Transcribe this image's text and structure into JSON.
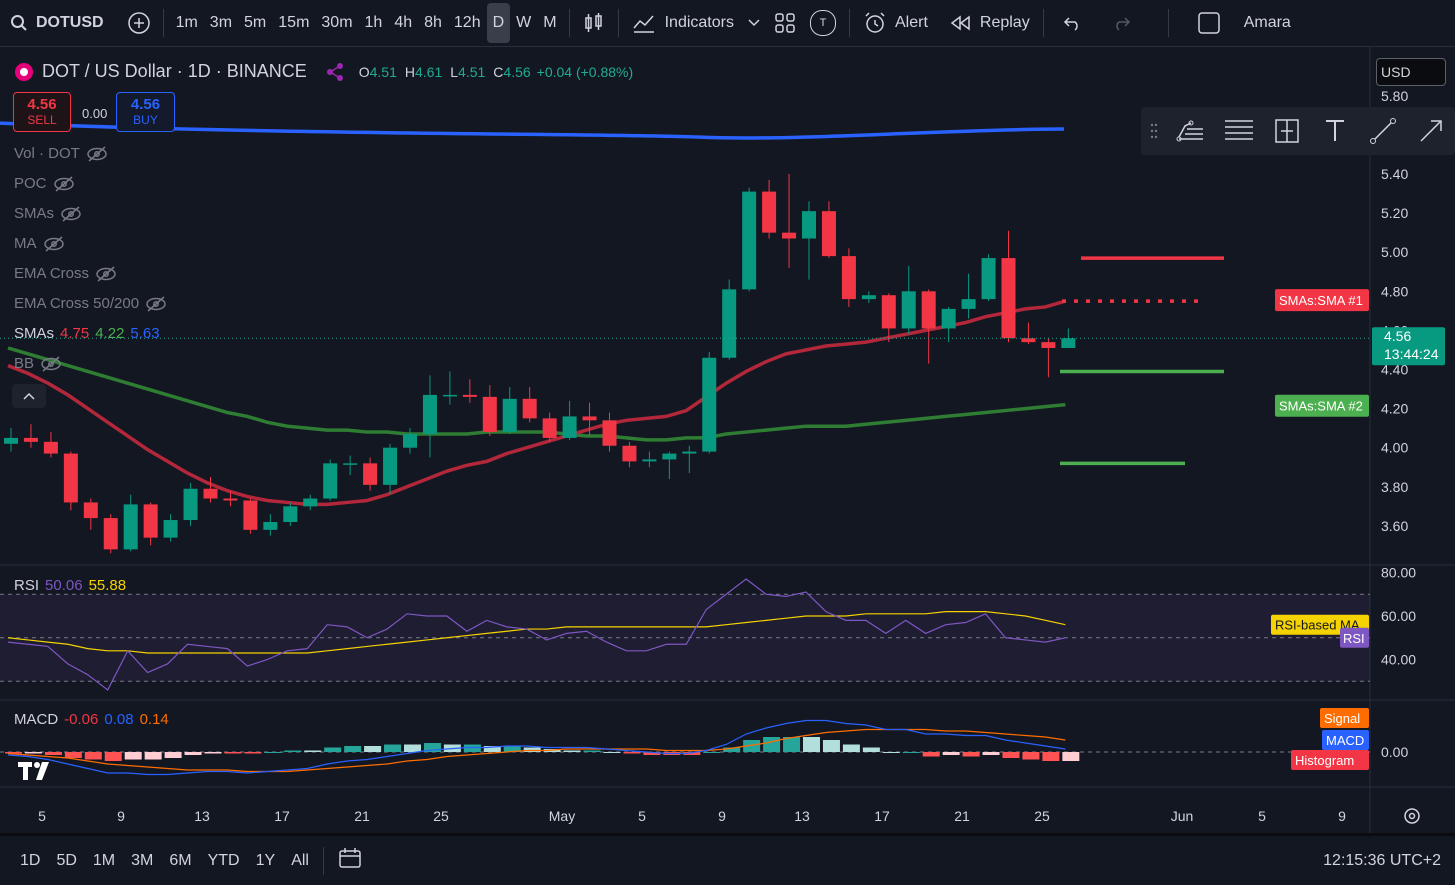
{
  "toolbar": {
    "symbol": "DOTUSD",
    "resolutions": [
      "1m",
      "3m",
      "5m",
      "15m",
      "30m",
      "1h",
      "4h",
      "8h",
      "12h",
      "D",
      "W",
      "M"
    ],
    "active_resolution": "D",
    "indicators_label": "Indicators",
    "alert_label": "Alert",
    "replay_label": "Replay",
    "user_label": "Amara",
    "t_badge": "T"
  },
  "header": {
    "title": "DOT / US Dollar · 1D · BINANCE",
    "open_label": "O",
    "open": "4.51",
    "high_label": "H",
    "high": "4.61",
    "low_label": "L",
    "low": "4.51",
    "close_label": "C",
    "close": "4.56",
    "change": "+0.04 (+0.88%)",
    "currency": "USD"
  },
  "trade": {
    "sell_price": "4.56",
    "sell_label": "SELL",
    "spread": "0.00",
    "buy_price": "4.56",
    "buy_label": "BUY"
  },
  "indicators_list": [
    {
      "name": "Vol · DOT"
    },
    {
      "name": "POC"
    },
    {
      "name": "SMAs"
    },
    {
      "name": "MA"
    },
    {
      "name": "EMA Cross"
    },
    {
      "name": "EMA Cross 50/200"
    }
  ],
  "smas_legend": {
    "label": "SMAs",
    "v1": "4.75",
    "v2": "4.22",
    "v3": "5.63"
  },
  "bb_label": "BB",
  "rsi_legend": {
    "label": "RSI",
    "v1": "50.06",
    "v2": "55.88"
  },
  "macd_legend": {
    "label": "MACD",
    "v1": "-0.06",
    "v2": "0.08",
    "v3": "0.14"
  },
  "price_axis": {
    "ticks": [
      "5.80",
      "5.40",
      "5.20",
      "5.00",
      "4.80",
      "4.60",
      "4.40",
      "4.20",
      "4.00",
      "3.80",
      "3.60"
    ],
    "last_price": "4.56",
    "countdown": "13:44:24",
    "sma1_label": "SMAs:SMA #1",
    "sma2_label": "SMAs:SMA #2"
  },
  "rsi_axis": {
    "ticks": [
      "80.00",
      "60.00",
      "40.00"
    ],
    "ma_label": "RSI-based MA",
    "rsi_label": "RSI"
  },
  "macd_axis": {
    "ticks": [
      "0.00"
    ],
    "signal_label": "Signal",
    "macd_label": "MACD",
    "hist_label": "Histogram"
  },
  "time_axis": [
    "5",
    "9",
    "13",
    "17",
    "21",
    "25",
    "May",
    "5",
    "9",
    "13",
    "17",
    "21",
    "25",
    "Jun",
    "5",
    "9"
  ],
  "bottom": {
    "ranges": [
      "1D",
      "5D",
      "1M",
      "3M",
      "6M",
      "YTD",
      "1Y",
      "All"
    ],
    "clock": "12:15:36 UTC+2"
  },
  "colors": {
    "up": "#089981",
    "down": "#f23645",
    "sma_red": "#b2283a",
    "sma_green": "#2e7d32",
    "sma_blue": "#2962ff",
    "rsi": "#7e57c2",
    "rsi_ma": "#f5d300",
    "macd": "#2962ff",
    "signal": "#ff6d00"
  },
  "chart_data": {
    "type": "candlestick",
    "symbol": "DOTUSD",
    "interval": "1D",
    "candles": [
      {
        "o": 4.02,
        "h": 4.1,
        "l": 3.98,
        "c": 4.05
      },
      {
        "o": 4.05,
        "h": 4.12,
        "l": 4.0,
        "c": 4.03
      },
      {
        "o": 4.03,
        "h": 4.08,
        "l": 3.95,
        "c": 3.97
      },
      {
        "o": 3.97,
        "h": 3.98,
        "l": 3.68,
        "c": 3.72
      },
      {
        "o": 3.72,
        "h": 3.74,
        "l": 3.58,
        "c": 3.64
      },
      {
        "o": 3.64,
        "h": 3.66,
        "l": 3.46,
        "c": 3.48
      },
      {
        "o": 3.48,
        "h": 3.76,
        "l": 3.47,
        "c": 3.71
      },
      {
        "o": 3.71,
        "h": 3.72,
        "l": 3.5,
        "c": 3.54
      },
      {
        "o": 3.54,
        "h": 3.66,
        "l": 3.52,
        "c": 3.63
      },
      {
        "o": 3.63,
        "h": 3.82,
        "l": 3.6,
        "c": 3.79
      },
      {
        "o": 3.79,
        "h": 3.85,
        "l": 3.72,
        "c": 3.74
      },
      {
        "o": 3.74,
        "h": 3.78,
        "l": 3.7,
        "c": 3.73
      },
      {
        "o": 3.73,
        "h": 3.74,
        "l": 3.56,
        "c": 3.58
      },
      {
        "o": 3.58,
        "h": 3.66,
        "l": 3.55,
        "c": 3.62
      },
      {
        "o": 3.62,
        "h": 3.72,
        "l": 3.6,
        "c": 3.7
      },
      {
        "o": 3.7,
        "h": 3.76,
        "l": 3.68,
        "c": 3.74
      },
      {
        "o": 3.74,
        "h": 3.94,
        "l": 3.73,
        "c": 3.92
      },
      {
        "o": 3.92,
        "h": 3.96,
        "l": 3.86,
        "c": 3.92
      },
      {
        "o": 3.92,
        "h": 3.95,
        "l": 3.78,
        "c": 3.81
      },
      {
        "o": 3.81,
        "h": 4.02,
        "l": 3.76,
        "c": 4.0
      },
      {
        "o": 4.0,
        "h": 4.1,
        "l": 3.97,
        "c": 4.07
      },
      {
        "o": 4.07,
        "h": 4.37,
        "l": 3.95,
        "c": 4.27
      },
      {
        "o": 4.27,
        "h": 4.39,
        "l": 4.22,
        "c": 4.27
      },
      {
        "o": 4.27,
        "h": 4.35,
        "l": 4.23,
        "c": 4.26
      },
      {
        "o": 4.26,
        "h": 4.32,
        "l": 4.06,
        "c": 4.08
      },
      {
        "o": 4.08,
        "h": 4.31,
        "l": 4.07,
        "c": 4.25
      },
      {
        "o": 4.25,
        "h": 4.31,
        "l": 4.13,
        "c": 4.15
      },
      {
        "o": 4.15,
        "h": 4.18,
        "l": 4.03,
        "c": 4.05
      },
      {
        "o": 4.05,
        "h": 4.24,
        "l": 4.04,
        "c": 4.16
      },
      {
        "o": 4.16,
        "h": 4.23,
        "l": 4.06,
        "c": 4.14
      },
      {
        "o": 4.14,
        "h": 4.18,
        "l": 3.98,
        "c": 4.01
      },
      {
        "o": 4.01,
        "h": 4.03,
        "l": 3.9,
        "c": 3.93
      },
      {
        "o": 3.93,
        "h": 3.98,
        "l": 3.9,
        "c": 3.94
      },
      {
        "o": 3.94,
        "h": 3.98,
        "l": 3.84,
        "c": 3.97
      },
      {
        "o": 3.97,
        "h": 4.01,
        "l": 3.87,
        "c": 3.98
      },
      {
        "o": 3.98,
        "h": 4.49,
        "l": 3.97,
        "c": 4.46
      },
      {
        "o": 4.46,
        "h": 4.86,
        "l": 4.45,
        "c": 4.81
      },
      {
        "o": 4.81,
        "h": 5.33,
        "l": 4.8,
        "c": 5.31
      },
      {
        "o": 5.31,
        "h": 5.37,
        "l": 5.07,
        "c": 5.1
      },
      {
        "o": 5.1,
        "h": 5.4,
        "l": 4.92,
        "c": 5.07
      },
      {
        "o": 5.07,
        "h": 5.26,
        "l": 4.86,
        "c": 5.21
      },
      {
        "o": 5.21,
        "h": 5.26,
        "l": 4.97,
        "c": 4.98
      },
      {
        "o": 4.98,
        "h": 5.02,
        "l": 4.72,
        "c": 4.76
      },
      {
        "o": 4.76,
        "h": 4.8,
        "l": 4.74,
        "c": 4.78
      },
      {
        "o": 4.78,
        "h": 4.79,
        "l": 4.54,
        "c": 4.61
      },
      {
        "o": 4.61,
        "h": 4.93,
        "l": 4.58,
        "c": 4.8
      },
      {
        "o": 4.8,
        "h": 4.81,
        "l": 4.43,
        "c": 4.61
      },
      {
        "o": 4.61,
        "h": 4.72,
        "l": 4.54,
        "c": 4.71
      },
      {
        "o": 4.71,
        "h": 4.89,
        "l": 4.66,
        "c": 4.76
      },
      {
        "o": 4.76,
        "h": 4.99,
        "l": 4.75,
        "c": 4.97
      },
      {
        "o": 4.97,
        "h": 5.11,
        "l": 4.54,
        "c": 4.56
      },
      {
        "o": 4.56,
        "h": 4.64,
        "l": 4.53,
        "c": 4.54
      },
      {
        "o": 4.54,
        "h": 4.56,
        "l": 4.36,
        "c": 4.51
      },
      {
        "o": 4.51,
        "h": 4.61,
        "l": 4.51,
        "c": 4.56
      }
    ],
    "sma_red": [
      4.42,
      4.38,
      4.33,
      4.27,
      4.2,
      4.13,
      4.06,
      3.99,
      3.93,
      3.87,
      3.82,
      3.78,
      3.75,
      3.73,
      3.72,
      3.71,
      3.71,
      3.72,
      3.73,
      3.76,
      3.8,
      3.84,
      3.88,
      3.91,
      3.93,
      3.97,
      4.0,
      4.03,
      4.06,
      4.09,
      4.12,
      4.14,
      4.15,
      4.16,
      4.19,
      4.26,
      4.33,
      4.39,
      4.44,
      4.48,
      4.5,
      4.52,
      4.53,
      4.54,
      4.56,
      4.58,
      4.6,
      4.62,
      4.64,
      4.67,
      4.69,
      4.71,
      4.72,
      4.75
    ],
    "sma_green": [
      4.51,
      4.48,
      4.45,
      4.42,
      4.39,
      4.36,
      4.33,
      4.3,
      4.27,
      4.24,
      4.21,
      4.18,
      4.16,
      4.13,
      4.11,
      4.1,
      4.09,
      4.09,
      4.08,
      4.08,
      4.07,
      4.07,
      4.07,
      4.07,
      4.08,
      4.08,
      4.08,
      4.08,
      4.07,
      4.06,
      4.06,
      4.05,
      4.04,
      4.04,
      4.05,
      4.05,
      4.07,
      4.08,
      4.09,
      4.1,
      4.11,
      4.11,
      4.11,
      4.12,
      4.13,
      4.14,
      4.15,
      4.16,
      4.17,
      4.18,
      4.19,
      4.2,
      4.21,
      4.22
    ],
    "sma_blue_start": 5.66,
    "sma_blue_end": 5.63,
    "sma_levels": {
      "red_line": 4.97,
      "green_upper": 4.39,
      "green_lower": 3.92
    },
    "rsi": [
      48,
      47,
      46,
      38,
      33,
      26,
      44,
      34,
      38,
      47,
      46,
      45,
      37,
      40,
      44,
      45,
      56,
      55,
      50,
      54,
      61,
      60,
      60,
      53,
      58,
      55,
      54,
      49,
      52,
      53,
      48,
      44,
      44,
      47,
      47,
      63,
      70,
      77,
      70,
      69,
      71,
      62,
      58,
      58,
      52,
      58,
      52,
      56,
      57,
      61,
      50,
      49,
      48,
      50
    ],
    "rsi_ma": [
      50,
      49,
      48,
      47,
      45,
      44,
      44,
      43,
      43,
      43,
      43,
      43,
      43,
      43,
      43,
      43,
      44,
      45,
      46,
      47,
      48,
      49,
      50,
      51,
      52,
      53,
      54,
      54,
      55,
      55,
      55,
      55,
      55,
      55,
      55,
      55,
      56,
      57,
      58,
      59,
      60,
      60,
      60,
      61,
      61,
      61,
      61,
      62,
      62,
      62,
      61,
      60,
      58,
      56
    ],
    "macd": [
      -0.02,
      -0.03,
      -0.05,
      -0.08,
      -0.11,
      -0.14,
      -0.14,
      -0.15,
      -0.15,
      -0.14,
      -0.13,
      -0.13,
      -0.14,
      -0.13,
      -0.12,
      -0.11,
      -0.08,
      -0.06,
      -0.05,
      -0.03,
      -0.01,
      0.01,
      0.02,
      0.03,
      0.03,
      0.04,
      0.04,
      0.03,
      0.03,
      0.03,
      0.02,
      0.01,
      0.0,
      -0.01,
      -0.01,
      0.01,
      0.05,
      0.12,
      0.16,
      0.19,
      0.21,
      0.21,
      0.19,
      0.18,
      0.15,
      0.15,
      0.12,
      0.12,
      0.11,
      0.11,
      0.08,
      0.06,
      0.04,
      0.02
    ],
    "signal": [
      -0.01,
      -0.02,
      -0.03,
      -0.04,
      -0.06,
      -0.08,
      -0.09,
      -0.1,
      -0.11,
      -0.12,
      -0.12,
      -0.12,
      -0.13,
      -0.13,
      -0.13,
      -0.12,
      -0.11,
      -0.1,
      -0.09,
      -0.08,
      -0.06,
      -0.05,
      -0.03,
      -0.02,
      -0.01,
      0.0,
      0.01,
      0.01,
      0.02,
      0.02,
      0.02,
      0.02,
      0.02,
      0.01,
      0.01,
      0.01,
      0.02,
      0.04,
      0.06,
      0.09,
      0.11,
      0.13,
      0.14,
      0.15,
      0.15,
      0.15,
      0.15,
      0.14,
      0.14,
      0.13,
      0.12,
      0.11,
      0.1,
      0.08
    ],
    "time_labels": [
      "5",
      "9",
      "13",
      "17",
      "21",
      "25",
      "May",
      "5",
      "9",
      "13",
      "17",
      "21",
      "25",
      "Jun",
      "5",
      "9"
    ]
  }
}
